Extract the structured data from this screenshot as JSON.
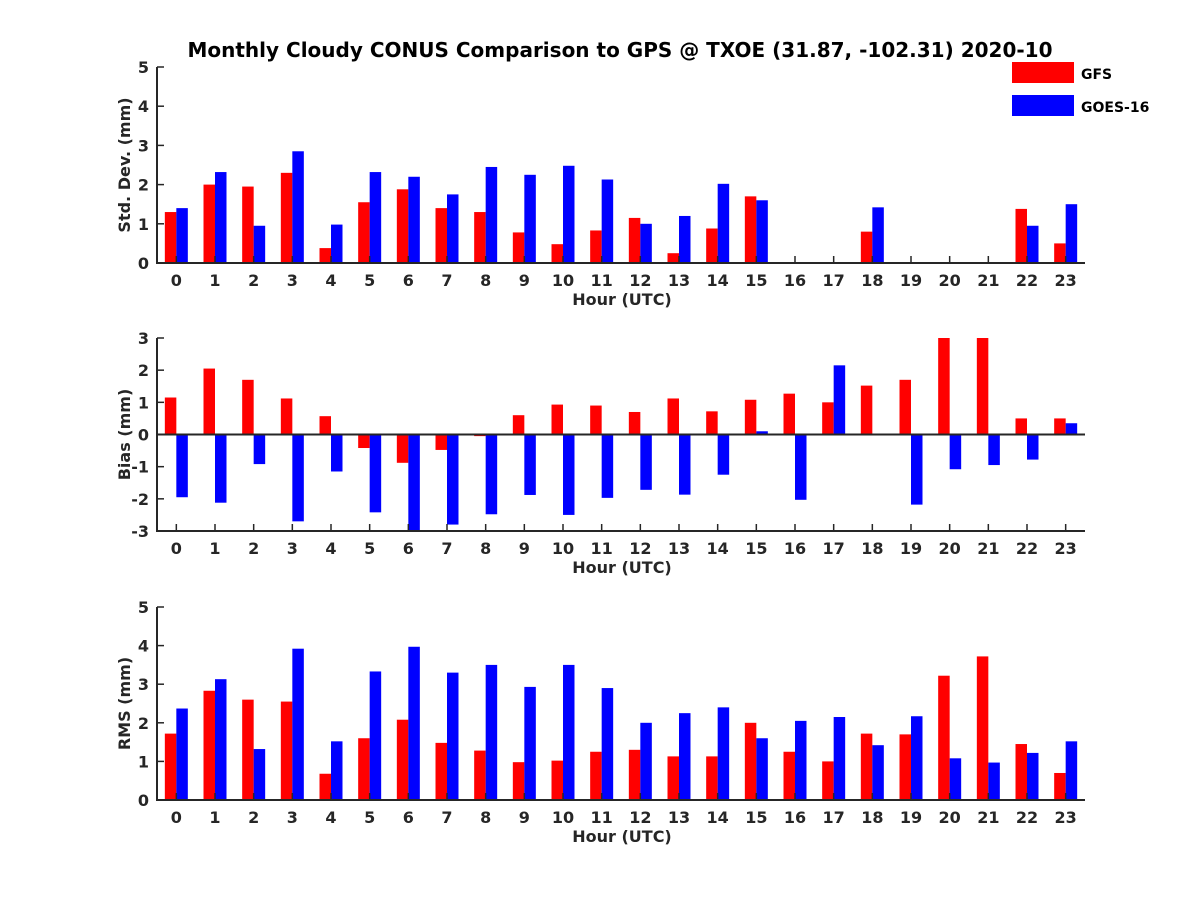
{
  "chart_data": {
    "type": "bar",
    "title": "Monthly Cloudy CONUS Comparison to GPS @ TXOE (31.87, -102.31) 2020-10",
    "colors": {
      "GFS": "#ff0000",
      "GOES-16": "#0000ff"
    },
    "legend": {
      "position": "top-right",
      "entries": [
        "GFS",
        "GOES-16"
      ]
    },
    "panels": [
      {
        "id": "stddev",
        "ylabel": "Std. Dev. (mm)",
        "xlabel": "Hour (UTC)",
        "ylim": [
          0,
          5
        ],
        "yticks": [
          0,
          1,
          2,
          3,
          4,
          5
        ],
        "categories": [
          "0",
          "1",
          "2",
          "3",
          "4",
          "5",
          "6",
          "7",
          "8",
          "9",
          "10",
          "11",
          "12",
          "13",
          "14",
          "15",
          "16",
          "17",
          "18",
          "19",
          "20",
          "21",
          "22",
          "23"
        ],
        "series": [
          {
            "name": "GFS",
            "values": [
              1.3,
              2.0,
              1.95,
              2.3,
              0.38,
              1.55,
              1.88,
              1.4,
              1.3,
              0.78,
              0.48,
              0.83,
              1.15,
              0.25,
              0.88,
              1.7,
              0,
              0,
              0.8,
              0,
              0,
              0,
              1.38,
              0.5
            ]
          },
          {
            "name": "GOES-16",
            "values": [
              1.4,
              2.32,
              0.95,
              2.85,
              0.98,
              2.32,
              2.2,
              1.75,
              2.45,
              2.25,
              2.48,
              2.13,
              1.0,
              1.2,
              2.02,
              1.6,
              0,
              0,
              1.42,
              0,
              0,
              0,
              0.95,
              1.5
            ]
          }
        ]
      },
      {
        "id": "bias",
        "ylabel": "Bias (mm)",
        "xlabel": "Hour (UTC)",
        "ylim": [
          -3,
          3
        ],
        "yticks": [
          -3,
          -2,
          -1,
          0,
          1,
          2,
          3
        ],
        "categories": [
          "0",
          "1",
          "2",
          "3",
          "4",
          "5",
          "6",
          "7",
          "8",
          "9",
          "10",
          "11",
          "12",
          "13",
          "14",
          "15",
          "16",
          "17",
          "18",
          "19",
          "20",
          "21",
          "22",
          "23"
        ],
        "series": [
          {
            "name": "GFS",
            "values": [
              1.15,
              2.05,
              1.7,
              1.12,
              0.57,
              -0.42,
              -0.88,
              -0.48,
              -0.05,
              0.6,
              0.93,
              0.9,
              0.7,
              1.12,
              0.72,
              1.08,
              1.27,
              1.0,
              1.52,
              1.7,
              3.0,
              3.0,
              0.5,
              0.5
            ]
          },
          {
            "name": "GOES-16",
            "values": [
              -1.95,
              -2.12,
              -0.92,
              -2.7,
              -1.15,
              -2.42,
              -3.0,
              -2.8,
              -2.48,
              -1.88,
              -2.5,
              -1.97,
              -1.72,
              -1.87,
              -1.25,
              0.1,
              -2.03,
              2.15,
              0,
              -2.18,
              -1.08,
              -0.95,
              -0.78,
              0.35
            ]
          }
        ]
      },
      {
        "id": "rms",
        "ylabel": "RMS (mm)",
        "xlabel": "Hour (UTC)",
        "ylim": [
          0,
          5
        ],
        "yticks": [
          0,
          1,
          2,
          3,
          4,
          5
        ],
        "categories": [
          "0",
          "1",
          "2",
          "3",
          "4",
          "5",
          "6",
          "7",
          "8",
          "9",
          "10",
          "11",
          "12",
          "13",
          "14",
          "15",
          "16",
          "17",
          "18",
          "19",
          "20",
          "21",
          "22",
          "23"
        ],
        "series": [
          {
            "name": "GFS",
            "values": [
              1.72,
              2.83,
              2.6,
              2.55,
              0.68,
              1.6,
              2.08,
              1.48,
              1.28,
              0.98,
              1.02,
              1.25,
              1.3,
              1.13,
              1.13,
              2.0,
              1.25,
              1.0,
              1.72,
              1.7,
              3.22,
              3.72,
              1.45,
              0.7
            ]
          },
          {
            "name": "GOES-16",
            "values": [
              2.37,
              3.13,
              1.32,
              3.92,
              1.52,
              3.33,
              3.97,
              3.3,
              3.5,
              2.93,
              3.5,
              2.9,
              2.0,
              2.25,
              2.4,
              1.6,
              2.05,
              2.15,
              1.42,
              2.17,
              1.08,
              0.97,
              1.22,
              1.52
            ]
          }
        ]
      }
    ]
  }
}
